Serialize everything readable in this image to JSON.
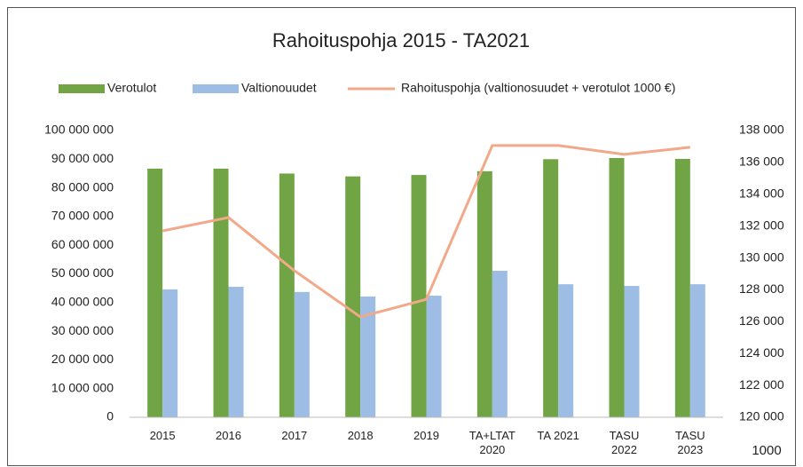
{
  "chart_data": {
    "type": "bar_line",
    "title": "Rahoituspohja 2015 - TA2021",
    "categories": [
      "2015",
      "2016",
      "2017",
      "2018",
      "2019",
      "TA+LTAT\n2020",
      "TA 2021",
      "TASU\n2022",
      "TASU\n2023"
    ],
    "series": [
      {
        "name": "Verotulot",
        "color": "#70a445",
        "values": [
          86700000,
          86700000,
          85000000,
          84000000,
          84500000,
          85800000,
          90000000,
          90400000,
          90100000
        ]
      },
      {
        "name": "Valtionouudet",
        "color": "#9dbde5",
        "values": [
          44600000,
          45500000,
          43700000,
          42100000,
          42400000,
          51100000,
          46400000,
          45800000,
          46400000
        ]
      },
      {
        "name": "Rahoituspohja (valtionosuudet + verotulot 1000 €)",
        "color": "#f2a98a",
        "axis": "y2",
        "type": "line",
        "values": [
          131700,
          132540,
          129200,
          126300,
          127400,
          137060,
          137060,
          136500,
          136950
        ]
      }
    ],
    "ylim": [
      0,
      100000000
    ],
    "yticks": [
      0,
      {
        "value": 10000000,
        "label": "10 000 000"
      },
      {
        "value": 20000000,
        "label": "20 000 000"
      },
      {
        "value": 30000000,
        "label": "30 000 000"
      },
      {
        "value": 40000000,
        "label": "40 000 000"
      },
      {
        "value": 50000000,
        "label": "50 000 000"
      },
      {
        "value": 60000000,
        "label": "60 000 000"
      },
      {
        "value": 70000000,
        "label": "70 000 000"
      },
      {
        "value": 80000000,
        "label": "80 000 000"
      },
      {
        "value": 90000000,
        "label": "90 000 000"
      },
      {
        "value": 100000000,
        "label": "100 000 000"
      }
    ],
    "y2lim": [
      120000,
      138000
    ],
    "y2ticks": [
      {
        "value": 120000,
        "label": "120 000"
      },
      {
        "value": 122000,
        "label": "122 000"
      },
      {
        "value": 124000,
        "label": "124 000"
      },
      {
        "value": 126000,
        "label": "126 000"
      },
      {
        "value": 128000,
        "label": "128 000"
      },
      {
        "value": 130000,
        "label": "130 000"
      },
      {
        "value": 132000,
        "label": "132 000"
      },
      {
        "value": 134000,
        "label": "134 000"
      },
      {
        "value": 136000,
        "label": "136 000"
      },
      {
        "value": 138000,
        "label": "138 000"
      }
    ],
    "annotation": "1000",
    "grid": false,
    "legend": "top"
  }
}
